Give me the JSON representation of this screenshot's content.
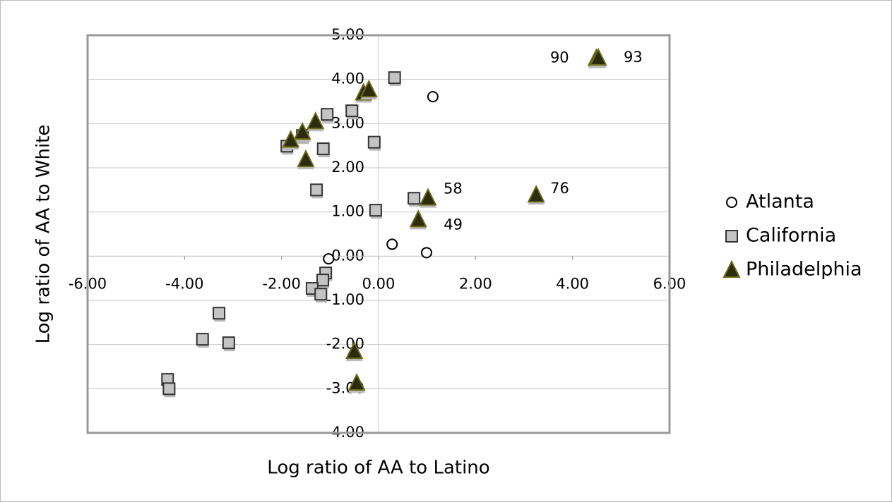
{
  "chart_data": {
    "type": "scatter",
    "xlabel": "Log ratio of AA to Latino",
    "ylabel": "Log ratio of AA to White",
    "xlim": [
      -6,
      6
    ],
    "ylim": [
      -4,
      5
    ],
    "xticks": [
      {
        "value": -6,
        "label": "-6.00"
      },
      {
        "value": -4,
        "label": "-4.00"
      },
      {
        "value": -2,
        "label": "-2.00"
      },
      {
        "value": 0,
        "label": "0.00"
      },
      {
        "value": 2,
        "label": "2.00"
      },
      {
        "value": 4,
        "label": "4.00"
      },
      {
        "value": 6,
        "label": "6.00"
      }
    ],
    "yticks": [
      {
        "value": -4,
        "label": "-4.00"
      },
      {
        "value": -3,
        "label": "-3.00"
      },
      {
        "value": -2,
        "label": "-2.00"
      },
      {
        "value": -1,
        "label": "-1.00"
      },
      {
        "value": 0,
        "label": "0.00"
      },
      {
        "value": 1,
        "label": "1.00"
      },
      {
        "value": 2,
        "label": "2.00"
      },
      {
        "value": 3,
        "label": "3.00"
      },
      {
        "value": 4,
        "label": "4.00"
      },
      {
        "value": 5,
        "label": "5.00"
      }
    ],
    "grid": true,
    "legend": "right",
    "series": [
      {
        "name": "Atlanta",
        "marker": "circle",
        "color": "#ffffff",
        "x": [
          1.12,
          0.28,
          0.99,
          -1.03
        ],
        "values": [
          3.61,
          0.27,
          0.08,
          -0.06
        ]
      },
      {
        "name": "California",
        "marker": "square",
        "color": "#c4c4c4",
        "x": [
          0.33,
          -0.55,
          -1.06,
          -0.09,
          -1.89,
          -1.14,
          -1.57,
          -1.28,
          -0.06,
          0.73,
          -1.09,
          -1.15,
          -1.37,
          -1.19,
          -3.29,
          -3.63,
          -3.09,
          -4.35,
          -4.32
        ],
        "values": [
          4.04,
          3.29,
          3.21,
          2.58,
          2.49,
          2.43,
          2.73,
          1.5,
          1.04,
          1.31,
          -0.38,
          -0.54,
          -0.73,
          -0.86,
          -1.29,
          -1.88,
          -1.96,
          -2.79,
          -3.0
        ]
      },
      {
        "name": "Philadelphia",
        "marker": "triangle",
        "color": "#2b2b0e",
        "x": [
          4.49,
          4.53,
          -0.31,
          -0.2,
          -1.3,
          -1.57,
          -1.81,
          -1.5,
          1.02,
          3.25,
          0.82,
          -0.5,
          -0.45
        ],
        "values": [
          4.48,
          4.49,
          3.7,
          3.77,
          3.05,
          2.81,
          2.63,
          2.19,
          1.32,
          1.39,
          0.83,
          -2.15,
          -2.87
        ],
        "point_labels": [
          "90",
          "93",
          null,
          null,
          null,
          null,
          null,
          null,
          "58",
          "76",
          "49",
          null,
          null
        ]
      }
    ]
  }
}
